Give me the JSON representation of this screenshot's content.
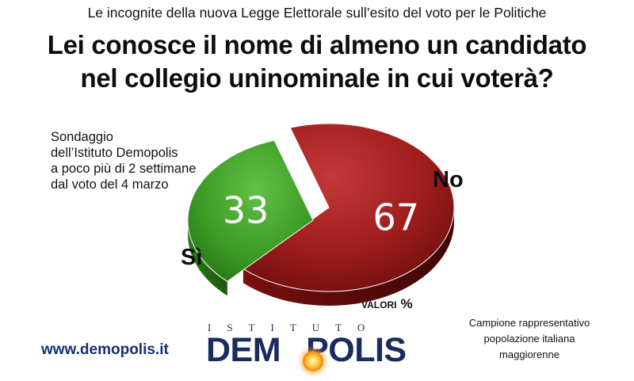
{
  "header": {
    "subtitle": "Le incognite della nuova Legge Elettorale sull’esito del voto per le Politiche",
    "title_line1": "Lei conosce il nome di almeno un candidato",
    "title_line2": "nel collegio uninominale in cui voterà?"
  },
  "survey_note": {
    "line1": "Sondaggio",
    "line2": "dell’Istituto Demopolis",
    "line3": "a poco più di 2 settimane",
    "line4": "dal voto del 4 marzo"
  },
  "chart_data": {
    "type": "pie",
    "title": "Lei conosce il nome di almeno un candidato nel collegio uninominale in cui voterà?",
    "unit": "%",
    "slices": [
      {
        "label": "No",
        "value": 67,
        "color": "#a11e1e"
      },
      {
        "label": "Sì",
        "value": 33,
        "color": "#3e9a26"
      }
    ],
    "legend": "none"
  },
  "unit_note": {
    "text": "VALORI",
    "symbol": "%"
  },
  "footer": {
    "website": "www.demopolis.it",
    "logo_top": "ISTITUTO",
    "logo_main_left": "DEM",
    "logo_main_right": "POLIS",
    "sample_line1": "Campione rappresentativo",
    "sample_line2": "popolazione italiana",
    "sample_line3": "maggiorenne"
  },
  "colors": {
    "accent_blue": "#142f77",
    "no_red": "#a11e1e",
    "yes_green": "#3e9a26"
  }
}
